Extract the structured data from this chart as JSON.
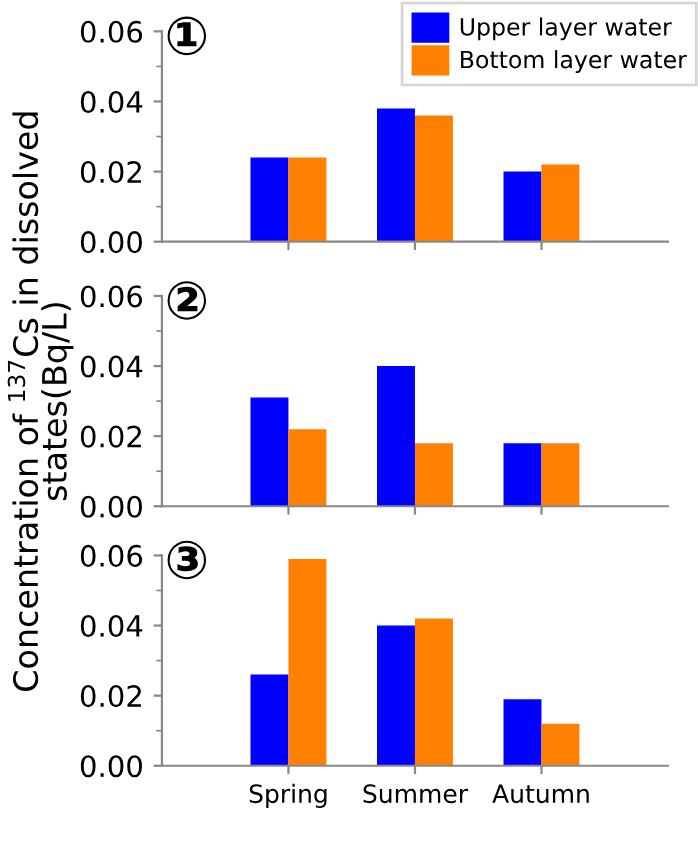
{
  "chart_data": [
    {
      "type": "bar",
      "annotations": [
        "①"
      ],
      "categories": [
        null,
        null,
        null
      ],
      "ylim": [
        0,
        0.06
      ],
      "yticks": [
        {
          "value": 0,
          "label": "0.00"
        },
        {
          "value": 0.02,
          "label": "0.02"
        },
        {
          "value": 0.04,
          "label": "0.04"
        },
        {
          "value": 0.06,
          "label": "0.06"
        }
      ],
      "legend": "top right",
      "series": [
        {
          "name": "Upper layer water",
          "color": "#0000ff",
          "values": [
            0.024,
            0.038,
            0.02
          ]
        },
        {
          "name": "Bottom layer water",
          "color": "#ff8000",
          "values": [
            0.024,
            0.036,
            0.022
          ]
        }
      ]
    },
    {
      "type": "bar",
      "annotations": [
        "②"
      ],
      "ylabel": "Concentration of $^{137}$Cs in dissolved\nstates(Bq/L)",
      "categories": [
        null,
        null,
        null
      ],
      "ylim": [
        0,
        0.06
      ],
      "yticks": [
        {
          "value": 0,
          "label": "0.00"
        },
        {
          "value": 0.02,
          "label": "0.02"
        },
        {
          "value": 0.04,
          "label": "0.04"
        },
        {
          "value": 0.06,
          "label": "0.06"
        }
      ],
      "series": [
        {
          "color": "#0000ff",
          "values": [
            0.031,
            0.04,
            0.018
          ]
        },
        {
          "color": "#ff8000",
          "values": [
            0.022,
            0.018,
            0.018
          ]
        }
      ]
    },
    {
      "type": "bar",
      "annotations": [
        "③"
      ],
      "categories": [
        "Spring",
        "Summer",
        "Autumn"
      ],
      "ylim": [
        0,
        0.06
      ],
      "yticks": [
        {
          "value": 0,
          "label": "0.00"
        },
        {
          "value": 0.02,
          "label": "0.02"
        },
        {
          "value": 0.04,
          "label": "0.04"
        },
        {
          "value": 0.06,
          "label": "0.06"
        }
      ],
      "series": [
        {
          "color": "#0000ff",
          "values": [
            0.026,
            0.04,
            0.019
          ]
        },
        {
          "color": "#ff8000",
          "values": [
            0.059,
            0.042,
            0.012
          ]
        }
      ]
    }
  ]
}
